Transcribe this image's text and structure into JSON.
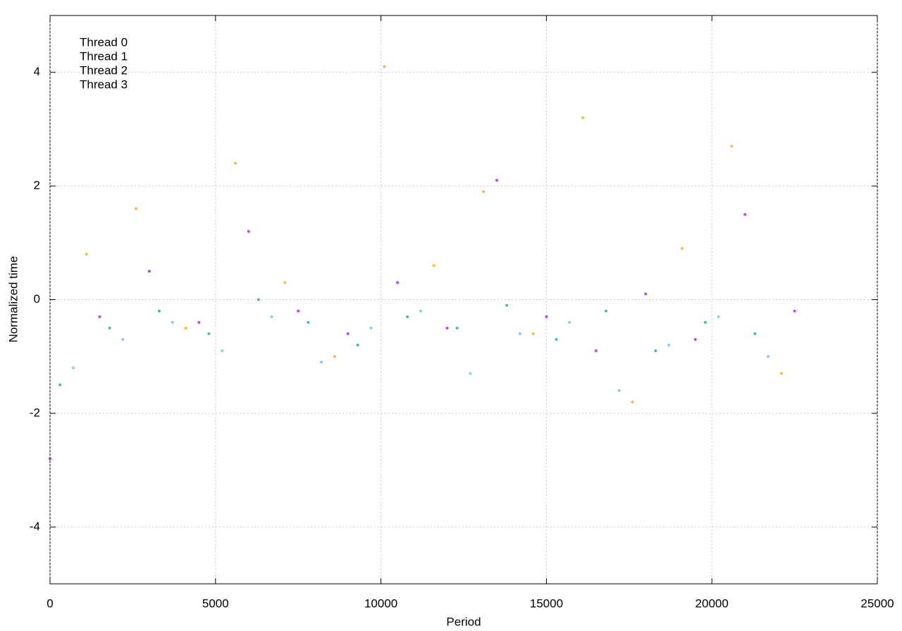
{
  "chart_data": {
    "type": "scatter",
    "xlabel": "Period",
    "ylabel": "Normalized time",
    "xlim": [
      0,
      25000
    ],
    "ylim": [
      -5,
      5
    ],
    "xticks": [
      0,
      5000,
      10000,
      15000,
      20000,
      25000
    ],
    "yticks": [
      -4,
      -2,
      0,
      2,
      4
    ],
    "grid": true,
    "legend": "upper left",
    "series": [
      {
        "name": "Thread 0",
        "color": "#9400d3",
        "x": [
          0,
          1500,
          3000,
          4500,
          6000,
          7500,
          9000,
          10500,
          12000,
          13500,
          15000,
          16500,
          18000,
          19500,
          21000,
          22500
        ],
        "values": [
          -2.8,
          -0.3,
          0.5,
          -0.4,
          1.2,
          -0.2,
          -0.6,
          0.3,
          -0.5,
          2.1,
          -0.3,
          -0.9,
          0.1,
          -0.7,
          1.5,
          -0.2
        ]
      },
      {
        "name": "Thread 1",
        "color": "#009e73",
        "x": [
          300,
          1800,
          3300,
          4800,
          6300,
          7800,
          9300,
          10800,
          12300,
          13800,
          15300,
          16800,
          18300,
          19800,
          21300
        ],
        "values": [
          -1.5,
          -0.5,
          -0.2,
          -0.6,
          0.0,
          -0.4,
          -0.8,
          -0.3,
          -0.5,
          -0.1,
          -0.7,
          -0.2,
          -0.9,
          -0.4,
          -0.6
        ]
      },
      {
        "name": "Thread 2",
        "color": "#56b4e9",
        "x": [
          700,
          2200,
          3700,
          5200,
          6700,
          8200,
          9700,
          11200,
          12700,
          14200,
          15700,
          17200,
          18700,
          20200,
          21700
        ],
        "values": [
          -1.2,
          -0.7,
          -0.4,
          -0.9,
          -0.3,
          -1.1,
          -0.5,
          -0.2,
          -1.3,
          -0.6,
          -0.4,
          -1.6,
          -0.8,
          -0.3,
          -1.0
        ]
      },
      {
        "name": "Thread 3",
        "color": "#e69f00",
        "x": [
          1100,
          2600,
          4100,
          5600,
          7100,
          8600,
          10100,
          11600,
          13100,
          14600,
          16100,
          17600,
          19100,
          20600,
          22100
        ],
        "values": [
          0.8,
          1.6,
          -0.5,
          2.4,
          0.3,
          -1.0,
          4.1,
          0.6,
          1.9,
          -0.6,
          3.2,
          -1.8,
          0.9,
          2.7,
          -1.3
        ]
      }
    ]
  }
}
